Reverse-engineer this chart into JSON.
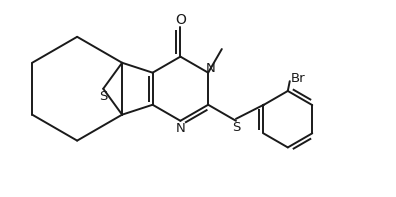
{
  "bg_color": "#ffffff",
  "line_color": "#1a1a1a",
  "line_width": 1.4,
  "font_size": 9.5,
  "figsize": [
    3.96,
    1.97
  ],
  "dpi": 100,
  "xlim": [
    0,
    10
  ],
  "ylim": [
    0,
    5
  ]
}
